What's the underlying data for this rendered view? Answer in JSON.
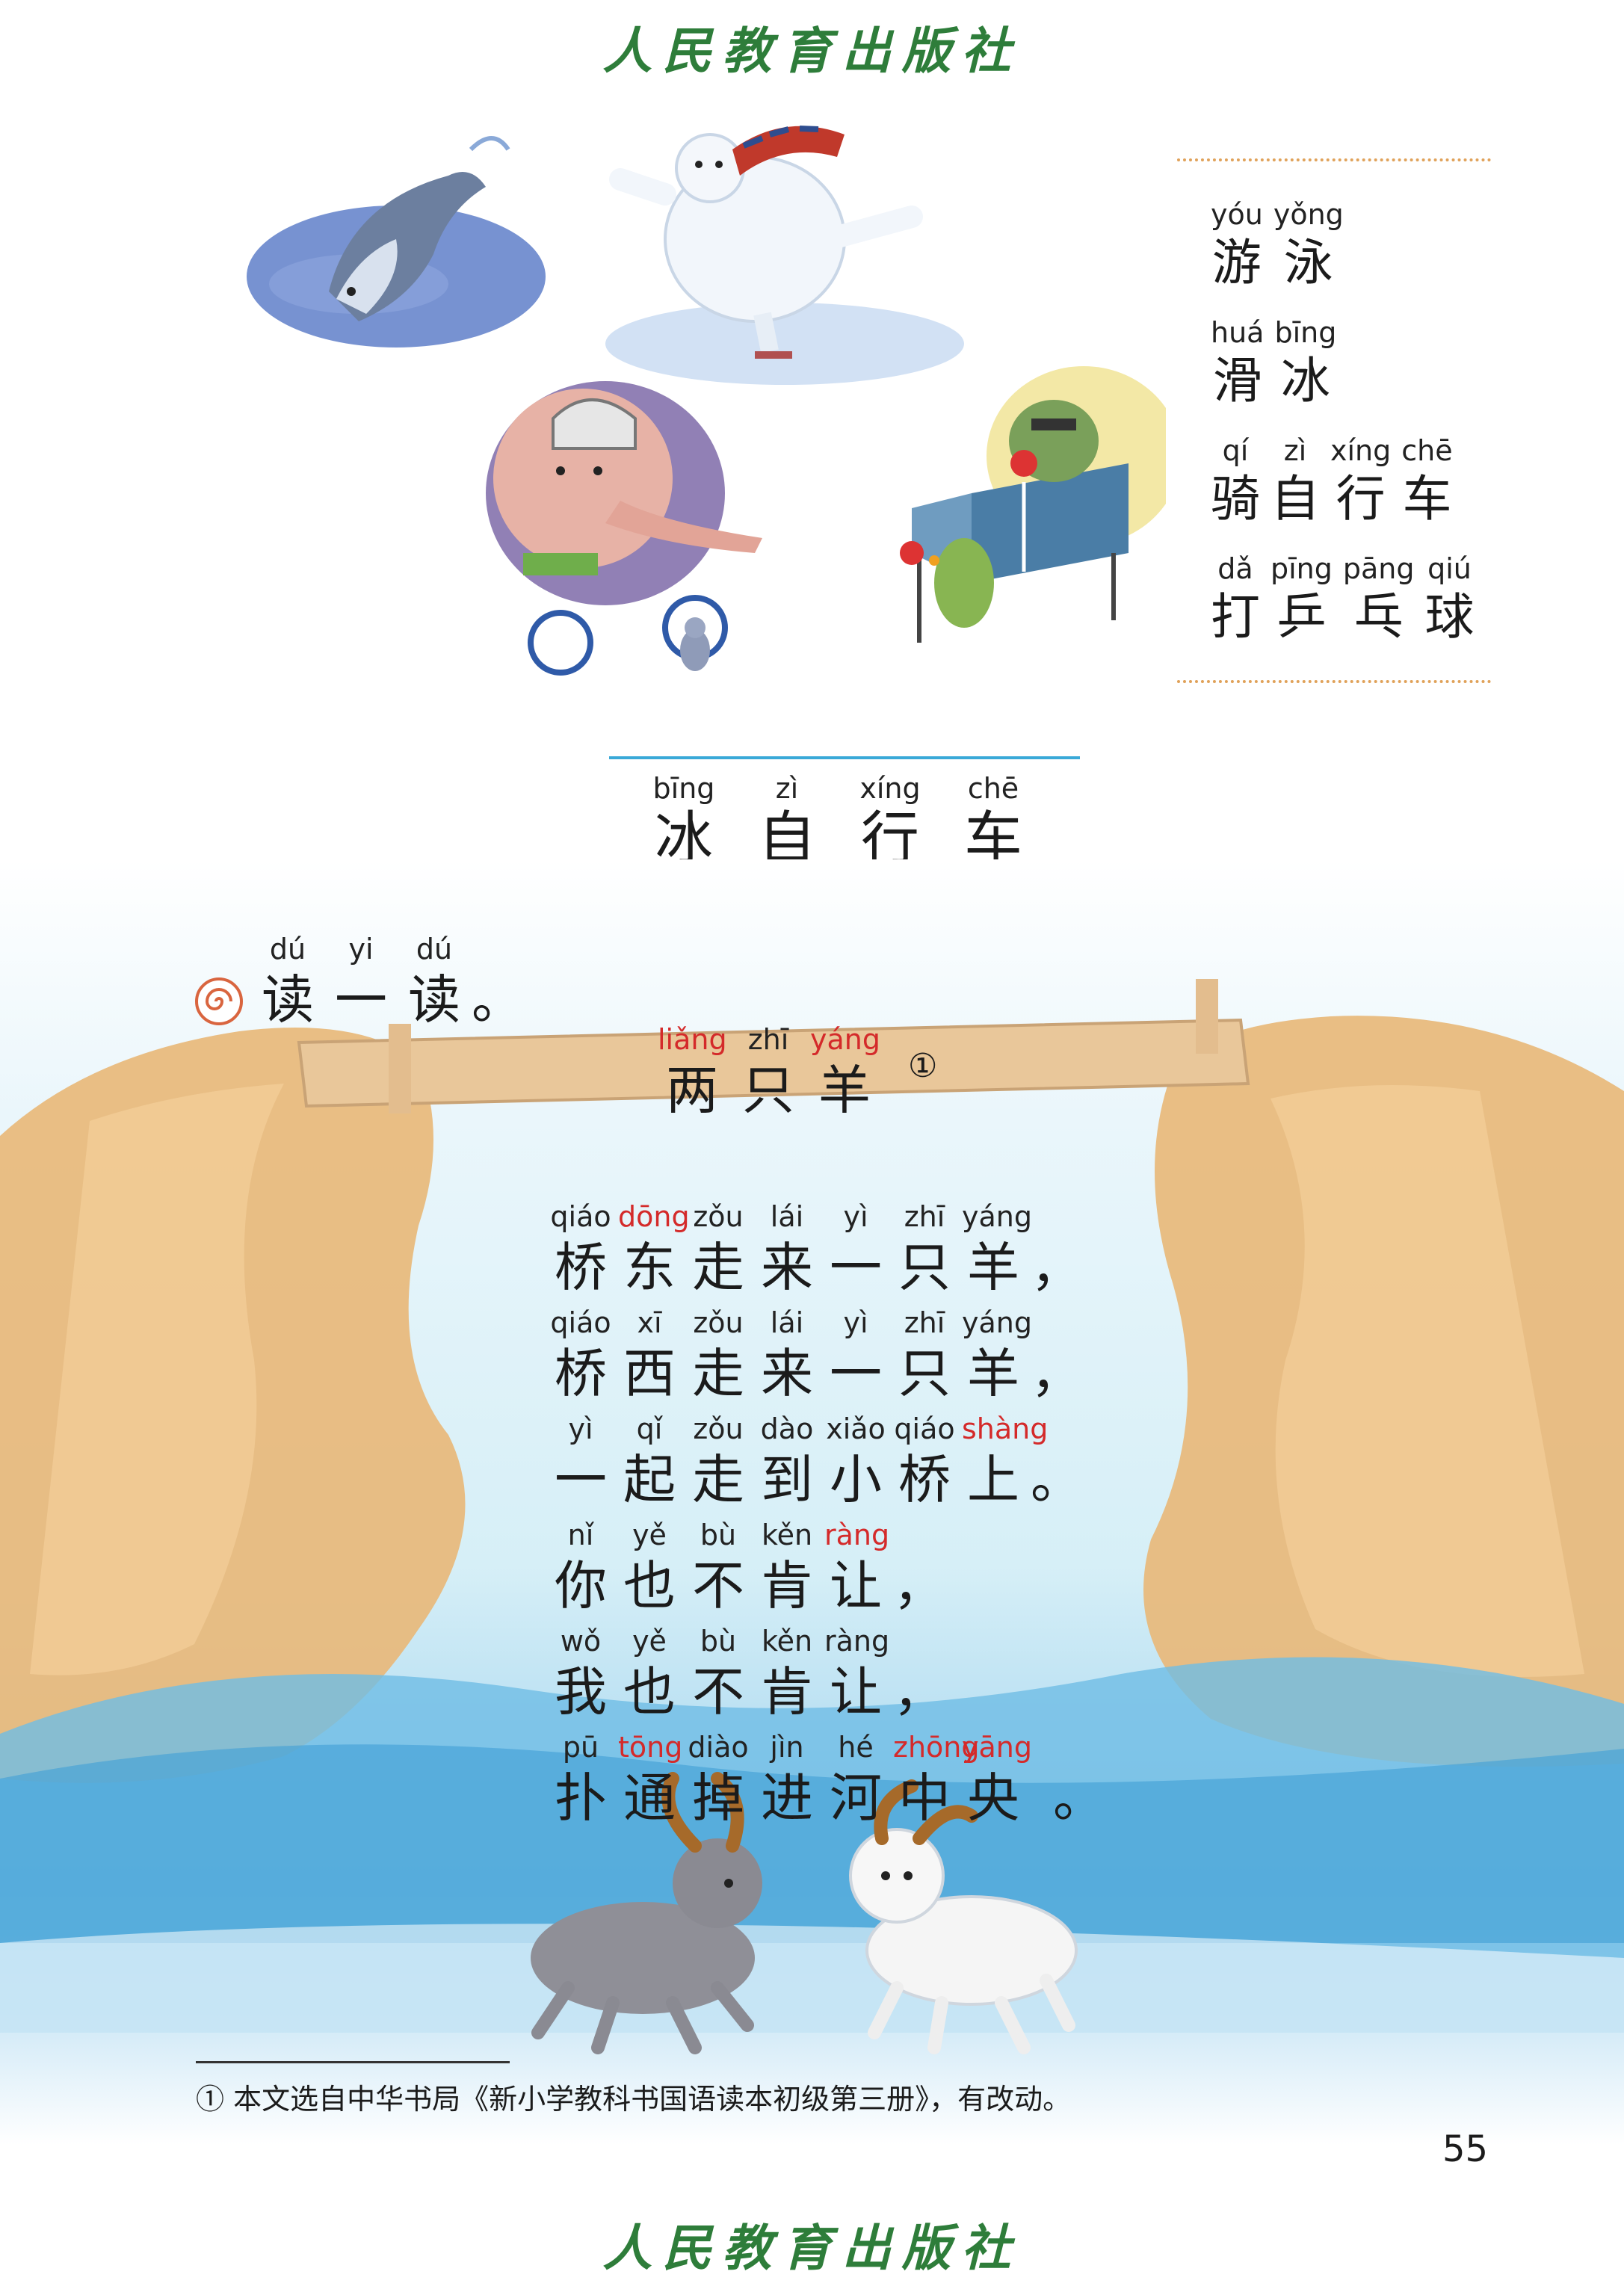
{
  "publisher": "人民教育出版社",
  "page_number": "55",
  "vocabulary": [
    {
      "units": [
        {
          "py": "yóu",
          "hz": "游"
        },
        {
          "py": "yǒng",
          "hz": "泳"
        }
      ]
    },
    {
      "units": [
        {
          "py": "huá",
          "hz": "滑"
        },
        {
          "py": "bīng",
          "hz": "冰"
        }
      ]
    },
    {
      "units": [
        {
          "py": "qí",
          "hz": "骑"
        },
        {
          "py": "zì",
          "hz": "自"
        },
        {
          "py": "xíng",
          "hz": "行"
        },
        {
          "py": "chē",
          "hz": "车"
        }
      ]
    },
    {
      "units": [
        {
          "py": "dǎ",
          "hz": "打"
        },
        {
          "py": "pīng",
          "hz": "乒"
        },
        {
          "py": "pāng",
          "hz": "乓"
        },
        {
          "py": "qiú",
          "hz": "球"
        }
      ]
    }
  ],
  "lesson_title": [
    {
      "py": "bīng",
      "hz": "冰"
    },
    {
      "py": "zì",
      "hz": "自"
    },
    {
      "py": "xíng",
      "hz": "行"
    },
    {
      "py": "chē",
      "hz": "车"
    }
  ],
  "section_heading": {
    "units": [
      {
        "py": "dú",
        "hz": "读"
      },
      {
        "py": "yi",
        "hz": "一"
      },
      {
        "py": "dú",
        "hz": "读"
      }
    ],
    "punct": "。"
  },
  "poem_title": {
    "units": [
      {
        "py": "liǎng",
        "hz": "两",
        "red": true
      },
      {
        "py": "zhī",
        "hz": "只"
      },
      {
        "py": "yáng",
        "hz": "羊",
        "red": true
      }
    ],
    "note_mark": "①"
  },
  "poem_lines": [
    {
      "units": [
        {
          "py": "qiáo",
          "hz": "桥"
        },
        {
          "py": "dōng",
          "hz": "东",
          "red": true
        },
        {
          "py": "zǒu",
          "hz": "走"
        },
        {
          "py": "lái",
          "hz": "来"
        },
        {
          "py": "yì",
          "hz": "一"
        },
        {
          "py": "zhī",
          "hz": "只"
        },
        {
          "py": "yáng",
          "hz": "羊"
        }
      ],
      "punct": "，"
    },
    {
      "units": [
        {
          "py": "qiáo",
          "hz": "桥"
        },
        {
          "py": "xī",
          "hz": "西"
        },
        {
          "py": "zǒu",
          "hz": "走"
        },
        {
          "py": "lái",
          "hz": "来"
        },
        {
          "py": "yì",
          "hz": "一"
        },
        {
          "py": "zhī",
          "hz": "只"
        },
        {
          "py": "yáng",
          "hz": "羊"
        }
      ],
      "punct": "，"
    },
    {
      "units": [
        {
          "py": "yì",
          "hz": "一"
        },
        {
          "py": "qǐ",
          "hz": "起"
        },
        {
          "py": "zǒu",
          "hz": "走"
        },
        {
          "py": "dào",
          "hz": "到"
        },
        {
          "py": "xiǎo",
          "hz": "小"
        },
        {
          "py": "qiáo",
          "hz": "桥"
        },
        {
          "py": "shàng",
          "hz": "上",
          "red": true
        }
      ],
      "punct": "。"
    },
    {
      "units": [
        {
          "py": "nǐ",
          "hz": "你"
        },
        {
          "py": "yě",
          "hz": "也"
        },
        {
          "py": "bù",
          "hz": "不"
        },
        {
          "py": "kěn",
          "hz": "肯"
        },
        {
          "py": "ràng",
          "hz": "让",
          "red": true
        }
      ],
      "punct": "，"
    },
    {
      "units": [
        {
          "py": "wǒ",
          "hz": "我"
        },
        {
          "py": "yě",
          "hz": "也"
        },
        {
          "py": "bù",
          "hz": "不"
        },
        {
          "py": "kěn",
          "hz": "肯"
        },
        {
          "py": "ràng",
          "hz": "让"
        }
      ],
      "punct": "，"
    },
    {
      "units": [
        {
          "py": "pū",
          "hz": "扑"
        },
        {
          "py": "tōng",
          "hz": "通",
          "red": true
        },
        {
          "py": "diào",
          "hz": "掉"
        },
        {
          "py": "jìn",
          "hz": "进"
        },
        {
          "py": "hé",
          "hz": "河"
        },
        {
          "py": "zhōng",
          "hz": "中",
          "red": true
        },
        {
          "py": "yāng",
          "hz": "央",
          "red": true
        }
      ],
      "punct": "。"
    }
  ],
  "footnote": "① 本文选自中华书局《新小学教科书国语读本初级第三册》，有改动。"
}
